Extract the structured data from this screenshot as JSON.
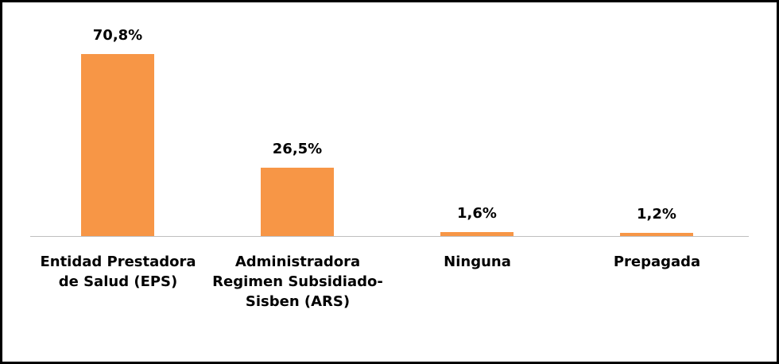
{
  "chart_data": {
    "type": "bar",
    "categories": [
      "Entidad Prestadora de Salud (EPS)",
      "Administradora Regimen Subsidiado-Sisben (ARS)",
      "Ninguna",
      "Prepagada"
    ],
    "values": [
      70.8,
      26.5,
      1.6,
      1.2
    ],
    "value_labels": [
      "70,8%",
      "26,5%",
      "1,6%",
      "1,2%"
    ],
    "color": "#f79646"
  }
}
